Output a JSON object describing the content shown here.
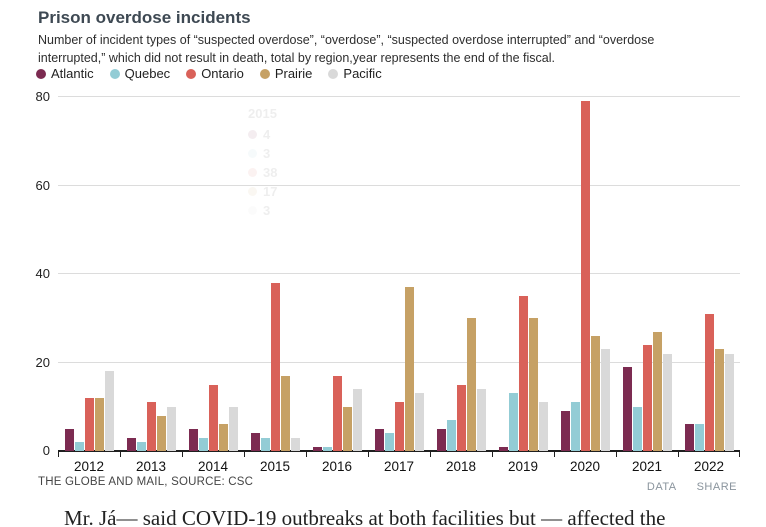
{
  "header": {
    "title": "Prison overdose incidents",
    "subtitle": "Number of incident types of “suspected overdose”, “overdose”, “suspected overdose interrupted” and “overdose interrupted,” which did not result in death, total by region,year represents the end of the fiscal."
  },
  "legend": [
    {
      "label": "Atlantic",
      "color": "#7c2b51"
    },
    {
      "label": "Quebec",
      "color": "#93ccd5"
    },
    {
      "label": "Ontario",
      "color": "#d96159"
    },
    {
      "label": "Prairie",
      "color": "#c6a165"
    },
    {
      "label": "Pacific",
      "color": "#d9d9d9"
    }
  ],
  "chart_data": {
    "type": "bar",
    "title": "Prison overdose incidents",
    "categories": [
      "2012",
      "2013",
      "2014",
      "2015",
      "2016",
      "2017",
      "2018",
      "2019",
      "2020",
      "2021",
      "2022"
    ],
    "series": [
      {
        "name": "Atlantic",
        "color": "#7c2b51",
        "values": [
          5,
          3,
          5,
          4,
          1,
          5,
          5,
          1,
          9,
          19,
          6
        ]
      },
      {
        "name": "Quebec",
        "color": "#93ccd5",
        "values": [
          2,
          2,
          3,
          3,
          1,
          4,
          7,
          13,
          11,
          10,
          6
        ]
      },
      {
        "name": "Ontario",
        "color": "#d96159",
        "values": [
          12,
          11,
          15,
          38,
          17,
          11,
          15,
          35,
          79,
          24,
          31
        ]
      },
      {
        "name": "Prairie",
        "color": "#c6a165",
        "values": [
          12,
          8,
          6,
          17,
          10,
          37,
          30,
          30,
          26,
          27,
          23
        ]
      },
      {
        "name": "Pacific",
        "color": "#d9d9d9",
        "values": [
          18,
          10,
          10,
          3,
          14,
          13,
          14,
          11,
          23,
          22,
          22
        ]
      }
    ],
    "xlabel": "",
    "ylabel": "",
    "ylim": [
      0,
      80
    ],
    "yticks": [
      0,
      20,
      40,
      60,
      80
    ],
    "grid": true,
    "legend_position": "top"
  },
  "ghost_tooltip": {
    "year": "2015",
    "values": [
      "4",
      "3",
      "38",
      "17",
      "3"
    ]
  },
  "footer": {
    "source": "THE GLOBE AND MAIL, SOURCE: CSC",
    "links": [
      "DATA",
      "SHARE"
    ]
  },
  "below_text": "Mr. Já— said COVID-19 outbreaks at both facilities but — affected the"
}
